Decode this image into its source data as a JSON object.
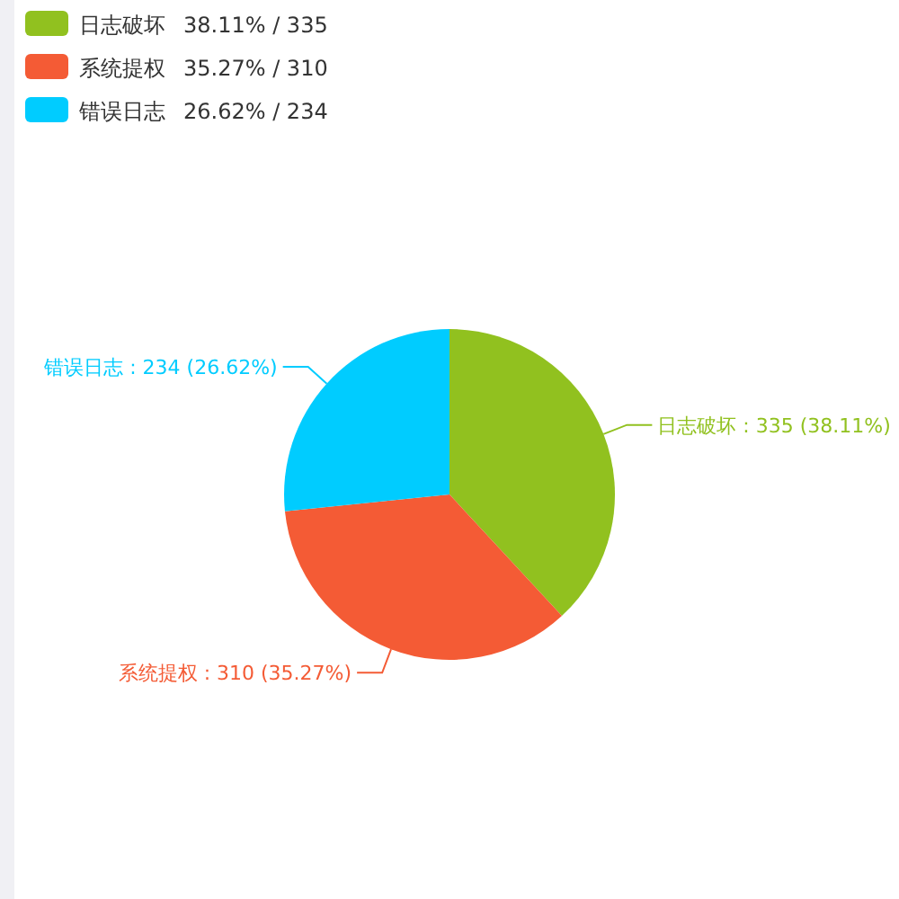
{
  "chart_data": {
    "type": "pie",
    "categories": [
      "日志破坏",
      "系统提权",
      "错误日志"
    ],
    "values": [
      335,
      310,
      234
    ],
    "colors": [
      "#91c11f",
      "#f45b35",
      "#00ccff"
    ],
    "value_labels": [
      ": 335 (38.11%)",
      ": 310 (35.27%)",
      ": 234 (26.62%)"
    ],
    "annotations": [
      "38.11%  /  335",
      "35.27%  /  310",
      "26.62%  /  234"
    ],
    "legend": "top left"
  }
}
